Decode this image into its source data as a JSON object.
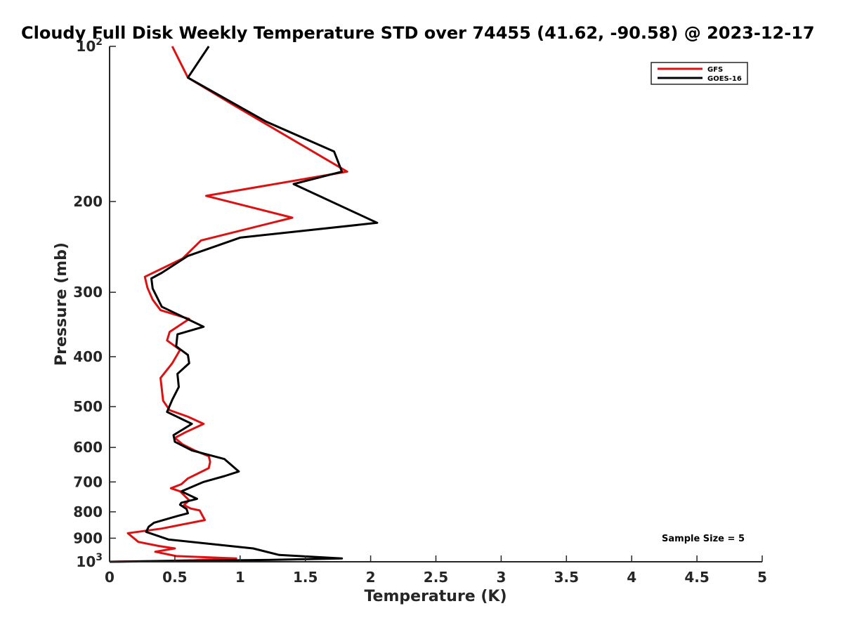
{
  "chart_data": {
    "type": "line",
    "title": "Cloudy Full Disk Weekly Temperature STD over 74455 (41.62, -90.58) @ 2023-12-17",
    "xlabel": "Temperature (K)",
    "ylabel": "Pressure (mb)",
    "xlim": [
      0,
      5
    ],
    "ylim": [
      100,
      1000
    ],
    "yscale": "log",
    "y_reversed": true,
    "grid": false,
    "legend_position": "top-right",
    "x_ticks": [
      {
        "value": 0,
        "label": "0"
      },
      {
        "value": 0.5,
        "label": "0.5"
      },
      {
        "value": 1,
        "label": "1"
      },
      {
        "value": 1.5,
        "label": "1.5"
      },
      {
        "value": 2,
        "label": "2"
      },
      {
        "value": 2.5,
        "label": "2.5"
      },
      {
        "value": 3,
        "label": "3"
      },
      {
        "value": 3.5,
        "label": "3.5"
      },
      {
        "value": 4,
        "label": "4"
      },
      {
        "value": 4.5,
        "label": "4.5"
      },
      {
        "value": 5,
        "label": "5"
      }
    ],
    "y_ticks": [
      {
        "value": 100,
        "label": "10",
        "sup": "2"
      },
      {
        "value": 200,
        "label": "200"
      },
      {
        "value": 300,
        "label": "300"
      },
      {
        "value": 400,
        "label": "400"
      },
      {
        "value": 500,
        "label": "500"
      },
      {
        "value": 600,
        "label": "600"
      },
      {
        "value": 700,
        "label": "700"
      },
      {
        "value": 800,
        "label": "800"
      },
      {
        "value": 900,
        "label": "900"
      },
      {
        "value": 1000,
        "label": "10",
        "sup": "3"
      }
    ],
    "annotations": [
      {
        "text": "Sample Size = 5"
      }
    ],
    "series": [
      {
        "name": "GFS",
        "color": "#dd1111",
        "points": [
          [
            0.48,
            100
          ],
          [
            0.6,
            115
          ],
          [
            0.95,
            130
          ],
          [
            1.82,
            175
          ],
          [
            0.74,
            195
          ],
          [
            1.4,
            215
          ],
          [
            0.7,
            238
          ],
          [
            0.56,
            258
          ],
          [
            0.27,
            280
          ],
          [
            0.29,
            294
          ],
          [
            0.33,
            310
          ],
          [
            0.39,
            325
          ],
          [
            0.61,
            338
          ],
          [
            0.46,
            358
          ],
          [
            0.44,
            372
          ],
          [
            0.54,
            388
          ],
          [
            0.48,
            412
          ],
          [
            0.39,
            440
          ],
          [
            0.4,
            462
          ],
          [
            0.41,
            487
          ],
          [
            0.46,
            508
          ],
          [
            0.6,
            523
          ],
          [
            0.72,
            540
          ],
          [
            0.58,
            561
          ],
          [
            0.5,
            575
          ],
          [
            0.56,
            592
          ],
          [
            0.65,
            608
          ],
          [
            0.76,
            624
          ],
          [
            0.77,
            640
          ],
          [
            0.76,
            658
          ],
          [
            0.6,
            689
          ],
          [
            0.55,
            707
          ],
          [
            0.47,
            720
          ],
          [
            0.54,
            730
          ],
          [
            0.61,
            760
          ],
          [
            0.57,
            776
          ],
          [
            0.62,
            788
          ],
          [
            0.69,
            795
          ],
          [
            0.73,
            830
          ],
          [
            0.4,
            862
          ],
          [
            0.14,
            880
          ],
          [
            0.22,
            915
          ],
          [
            0.38,
            932
          ],
          [
            0.5,
            942
          ],
          [
            0.35,
            956
          ],
          [
            0.51,
            975
          ],
          [
            0.97,
            985
          ],
          [
            0.65,
            993
          ],
          [
            0,
            1000
          ]
        ]
      },
      {
        "name": "GOES-16",
        "color": "#000000",
        "points": [
          [
            0.76,
            100
          ],
          [
            0.6,
            115
          ],
          [
            1.2,
            140
          ],
          [
            1.72,
            160
          ],
          [
            1.78,
            175
          ],
          [
            1.41,
            185
          ],
          [
            2.05,
            220
          ],
          [
            1.0,
            235
          ],
          [
            0.6,
            255
          ],
          [
            0.4,
            275
          ],
          [
            0.32,
            282
          ],
          [
            0.33,
            295
          ],
          [
            0.4,
            320
          ],
          [
            0.72,
            350
          ],
          [
            0.52,
            362
          ],
          [
            0.51,
            382
          ],
          [
            0.6,
            397
          ],
          [
            0.61,
            412
          ],
          [
            0.52,
            432
          ],
          [
            0.53,
            458
          ],
          [
            0.48,
            485
          ],
          [
            0.44,
            512
          ],
          [
            0.63,
            540
          ],
          [
            0.49,
            568
          ],
          [
            0.5,
            585
          ],
          [
            0.63,
            608
          ],
          [
            0.88,
            632
          ],
          [
            0.99,
            668
          ],
          [
            0.88,
            682
          ],
          [
            0.72,
            700
          ],
          [
            0.55,
            730
          ],
          [
            0.67,
            755
          ],
          [
            0.55,
            768
          ],
          [
            0.54,
            775
          ],
          [
            0.59,
            790
          ],
          [
            0.6,
            805
          ],
          [
            0.52,
            815
          ],
          [
            0.34,
            840
          ],
          [
            0.3,
            855
          ],
          [
            0.28,
            875
          ],
          [
            0.45,
            905
          ],
          [
            1.1,
            942
          ],
          [
            1.3,
            970
          ],
          [
            1.78,
            985
          ],
          [
            1.2,
            992
          ],
          [
            0,
            1000
          ]
        ]
      }
    ]
  }
}
